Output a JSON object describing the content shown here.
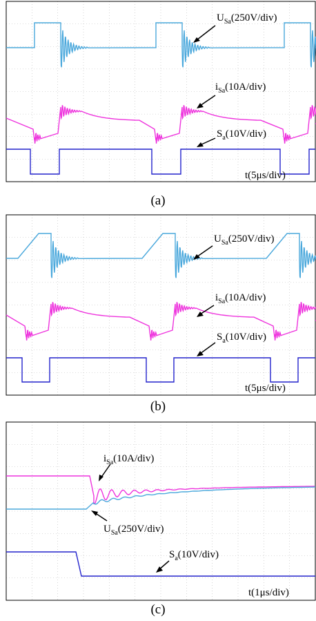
{
  "colors": {
    "voltage": "#4aa8dc",
    "current": "#ee33dd",
    "gate": "#2222cc",
    "grid": "#b8b8b8",
    "frame": "#000000"
  },
  "panels": [
    {
      "caption": "(a)",
      "labels": {
        "u": {
          "main": "U",
          "sub": "Sa",
          "rest": "(250V/div)"
        },
        "i": {
          "main": "i",
          "sub": "Sa",
          "rest": "(10A/div)"
        },
        "s": {
          "main": "S",
          "sub": "a",
          "rest": "(10V/div)"
        },
        "t": "t(5μs/div)"
      }
    },
    {
      "caption": "(b)",
      "labels": {
        "u": {
          "main": "U",
          "sub": "Sa",
          "rest": "(250V/div)"
        },
        "i": {
          "main": "i",
          "sub": "Sa",
          "rest": "(10A/div)"
        },
        "s": {
          "main": "S",
          "sub": "a",
          "rest": "(10V/div)"
        },
        "t": "t(5μs/div)"
      }
    },
    {
      "caption": "(c)",
      "labels": {
        "u": {
          "main": "U",
          "sub": "Sa",
          "rest": "(250V/div)"
        },
        "i": {
          "main": "i",
          "sub": "Sa",
          "rest": "(10A/div)"
        },
        "s": {
          "main": "S",
          "sub": "a",
          "rest": "(10V/div)"
        },
        "t": "t(1μs/div)"
      }
    }
  ],
  "chart_data": [
    {
      "type": "line",
      "time_per_div": "5μs",
      "series": [
        {
          "name": "U_Sa",
          "scale": "250V/div",
          "pulses_start_div": [
            1,
            6,
            11
          ],
          "pulse_width_div": 1
        },
        {
          "name": "i_Sa",
          "scale": "10A/div"
        },
        {
          "name": "S_a",
          "scale": "10V/div"
        }
      ]
    },
    {
      "type": "line",
      "time_per_div": "5μs",
      "series": [
        {
          "name": "U_Sa",
          "scale": "250V/div",
          "pulses_start_div": [
            0.7,
            5.6,
            10.5
          ],
          "pulse_width_div": 1
        },
        {
          "name": "i_Sa",
          "scale": "10A/div"
        },
        {
          "name": "S_a",
          "scale": "10V/div"
        }
      ]
    },
    {
      "type": "line",
      "time_per_div": "1μs",
      "series": [
        {
          "name": "i_Sa",
          "scale": "10A/div"
        },
        {
          "name": "U_Sa",
          "scale": "250V/div"
        },
        {
          "name": "S_a",
          "scale": "10V/div",
          "falling_edge_div": 2.8
        }
      ]
    }
  ]
}
